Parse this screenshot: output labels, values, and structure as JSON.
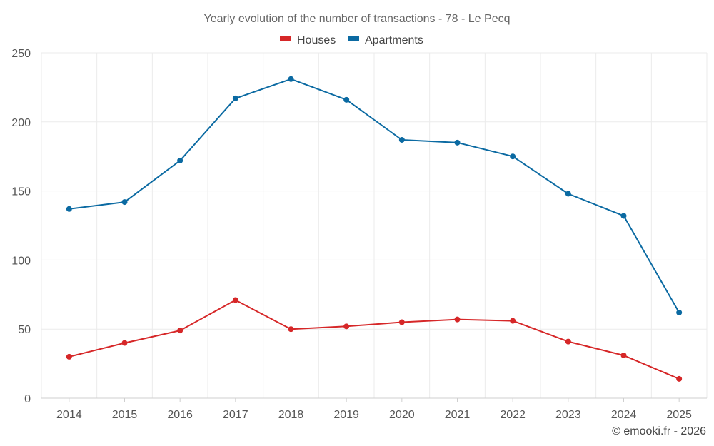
{
  "chart_data": {
    "type": "line",
    "title": "Yearly evolution of the number of transactions - 78 - Le Pecq",
    "categories": [
      "2014",
      "2015",
      "2016",
      "2017",
      "2018",
      "2019",
      "2020",
      "2021",
      "2022",
      "2023",
      "2024",
      "2025"
    ],
    "series": [
      {
        "name": "Houses",
        "color": "#d62728",
        "values": [
          30,
          40,
          49,
          71,
          50,
          52,
          55,
          57,
          56,
          41,
          31,
          14
        ]
      },
      {
        "name": "Apartments",
        "color": "#0b6aa2",
        "values": [
          137,
          142,
          172,
          217,
          231,
          216,
          187,
          185,
          175,
          148,
          132,
          62
        ]
      }
    ],
    "ylim": [
      0,
      250
    ],
    "yticks": [
      0,
      50,
      100,
      150,
      200,
      250
    ],
    "legend_position": "top-center",
    "grid": true
  },
  "credit": "© emooki.fr - 2026"
}
